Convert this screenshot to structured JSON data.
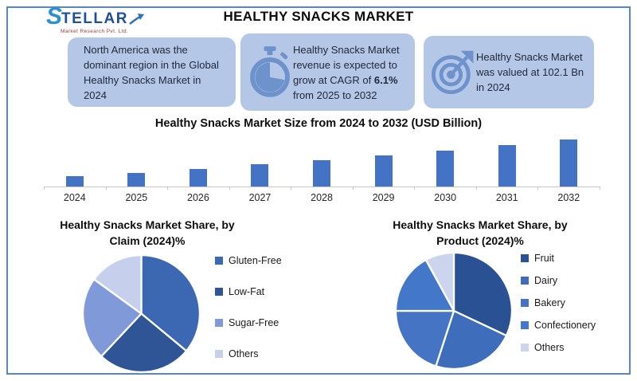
{
  "header": {
    "logo": {
      "brand_s": "S",
      "brand_rest": "TELLAR",
      "subtitle": "Market Research Pvt. Ltd."
    },
    "title": "HEALTHY SNACKS MARKET"
  },
  "highlights": [
    {
      "icon": "none",
      "text": "North America was the dominant region in the Global Healthy Snacks Market in 2024"
    },
    {
      "icon": "stopwatch",
      "text_before": "Healthy Snacks Market revenue is expected to grow at CAGR of ",
      "cagr": "6.1%",
      "text_after": " from 2025 to 2032"
    },
    {
      "icon": "target",
      "text": "Healthy Snacks Market was valued at 102.1 Bn in 2024"
    }
  ],
  "chart_data": [
    {
      "type": "bar",
      "title": "Healthy Snacks Market Size from 2024 to 2032 (USD Billion)",
      "categories": [
        "2024",
        "2025",
        "2026",
        "2027",
        "2028",
        "2029",
        "2030",
        "2031",
        "2032"
      ],
      "values": [
        102.1,
        108.3,
        114.9,
        121.9,
        129.4,
        137.3,
        145.6,
        154.5,
        163.9
      ],
      "xlabel": "",
      "ylabel": "",
      "y_axis_hidden": true,
      "render_ylim": [
        85,
        168
      ],
      "bar_color": "#4472C4",
      "axis_color": "#C6C6C6"
    },
    {
      "type": "pie",
      "title_line1": "Healthy Snacks Market Share, by",
      "title_line2": "Claim (2024)%",
      "legend_position": "right",
      "slices": [
        {
          "label": "Gluten-Free",
          "value": 36,
          "color": "#3C68B3"
        },
        {
          "label": "Low-Fat",
          "value": 26,
          "color": "#2F5597"
        },
        {
          "label": "Sugar-Free",
          "value": 23,
          "color": "#8099D8"
        },
        {
          "label": "Others",
          "value": 15,
          "color": "#C6CFEC"
        }
      ]
    },
    {
      "type": "pie",
      "title_line1": "Healthy Snacks Market Share, by",
      "title_line2": "Product (2024)%",
      "legend_position": "right",
      "slices": [
        {
          "label": "Fruit",
          "value": 32,
          "color": "#2A5193"
        },
        {
          "label": "Dairy",
          "value": 23,
          "color": "#3E6DBB"
        },
        {
          "label": "Bakery",
          "value": 20,
          "color": "#4574C5"
        },
        {
          "label": "Confectionery",
          "value": 17,
          "color": "#4377C9"
        },
        {
          "label": "Others",
          "value": 8,
          "color": "#CDD4ED"
        }
      ]
    }
  ],
  "colors": {
    "card_bg": "#B4C7E7",
    "icon_blue": "#6E92CC",
    "frame_border": "#5B87B5"
  }
}
